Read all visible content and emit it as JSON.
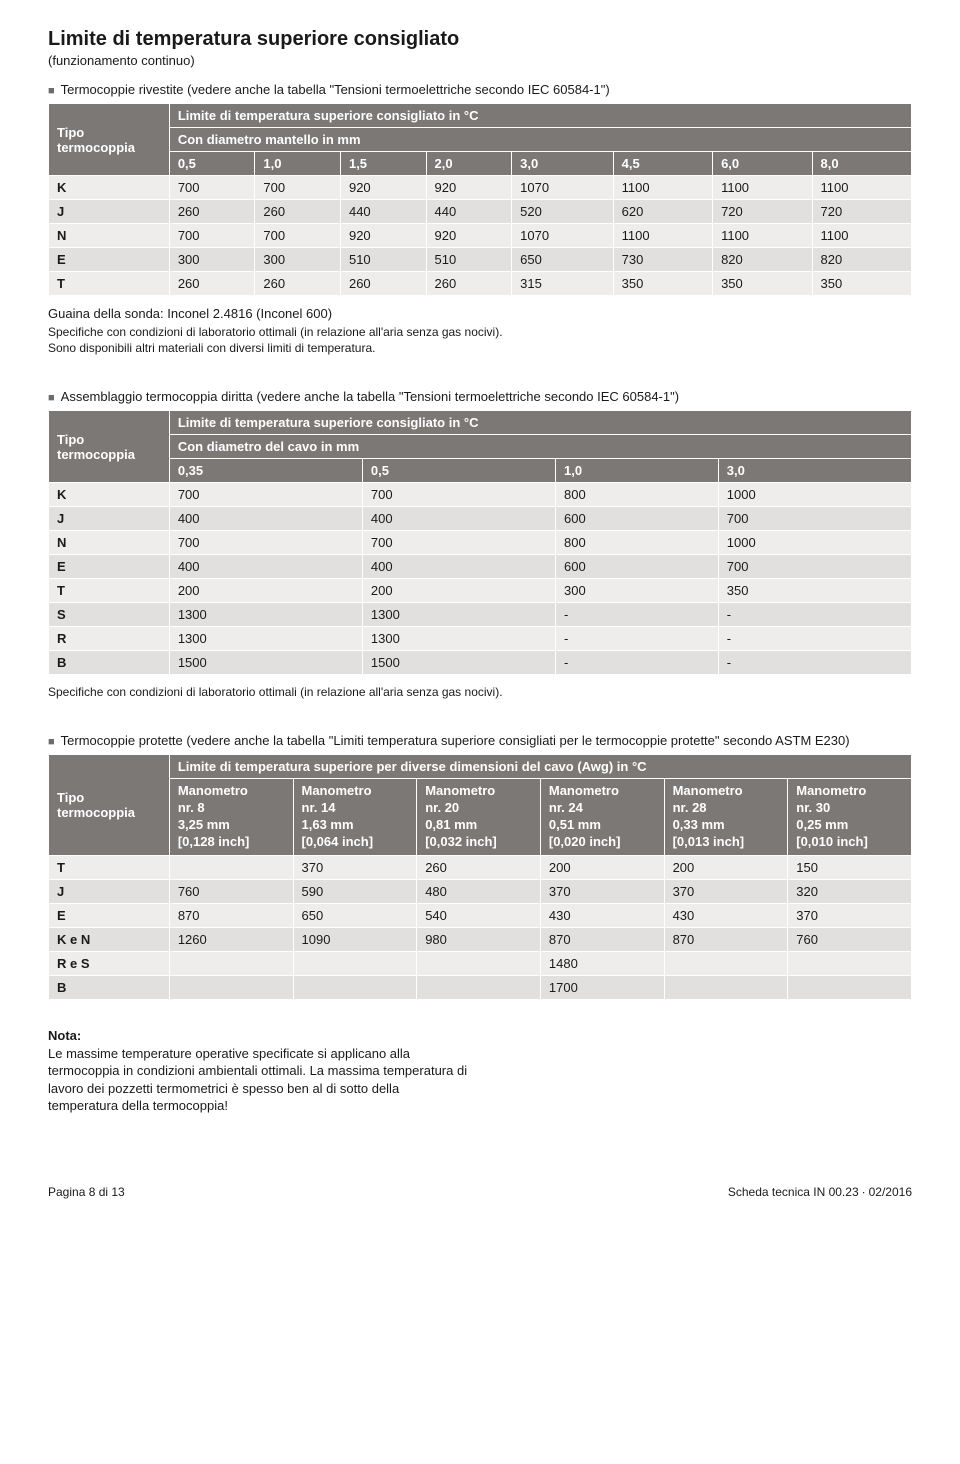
{
  "title": "Limite di temperatura superiore consigliato",
  "subtitle": "(funzionamento continuo)",
  "section1": {
    "bullet": "Termocoppie rivestite (vedere anche la tabella \"Tensioni termoelettriche secondo IEC 60584-1\")",
    "type_header": "Tipo termocoppia",
    "limit_header": "Limite di temperatura superiore consigliato in °C",
    "dia_header": "Con diametro mantello in mm",
    "cols": [
      "0,5",
      "1,0",
      "1,5",
      "2,0",
      "3,0",
      "4,5",
      "6,0",
      "8,0"
    ],
    "rows": [
      {
        "t": "K",
        "v": [
          "700",
          "700",
          "920",
          "920",
          "1070",
          "1100",
          "1100",
          "1100"
        ]
      },
      {
        "t": "J",
        "v": [
          "260",
          "260",
          "440",
          "440",
          "520",
          "620",
          "720",
          "720"
        ]
      },
      {
        "t": "N",
        "v": [
          "700",
          "700",
          "920",
          "920",
          "1070",
          "1100",
          "1100",
          "1100"
        ]
      },
      {
        "t": "E",
        "v": [
          "300",
          "300",
          "510",
          "510",
          "650",
          "730",
          "820",
          "820"
        ]
      },
      {
        "t": "T",
        "v": [
          "260",
          "260",
          "260",
          "260",
          "315",
          "350",
          "350",
          "350"
        ]
      }
    ],
    "after1": "Guaina della sonda: Inconel 2.4816 (Inconel 600)",
    "after2": "Specifiche con condizioni di laboratorio ottimali (in relazione all'aria senza gas nocivi).",
    "after3": "Sono disponibili altri materiali con diversi limiti di temperatura."
  },
  "section2": {
    "bullet": "Assemblaggio termocoppia diritta (vedere anche la tabella \"Tensioni termoelettriche secondo IEC 60584-1\")",
    "type_header": "Tipo termocoppia",
    "limit_header": "Limite di temperatura superiore consigliato in °C",
    "dia_header": "Con diametro del cavo in mm",
    "cols": [
      "0,35",
      "0,5",
      "1,0",
      "3,0"
    ],
    "rows": [
      {
        "t": "K",
        "v": [
          "700",
          "700",
          "800",
          "1000"
        ]
      },
      {
        "t": "J",
        "v": [
          "400",
          "400",
          "600",
          "700"
        ]
      },
      {
        "t": "N",
        "v": [
          "700",
          "700",
          "800",
          "1000"
        ]
      },
      {
        "t": "E",
        "v": [
          "400",
          "400",
          "600",
          "700"
        ]
      },
      {
        "t": "T",
        "v": [
          "200",
          "200",
          "300",
          "350"
        ]
      },
      {
        "t": "S",
        "v": [
          "1300",
          "1300",
          "-",
          "-"
        ]
      },
      {
        "t": "R",
        "v": [
          "1300",
          "1300",
          "-",
          "-"
        ]
      },
      {
        "t": "B",
        "v": [
          "1500",
          "1500",
          "-",
          "-"
        ]
      }
    ],
    "after1": "Specifiche con condizioni di laboratorio ottimali (in relazione all'aria senza gas nocivi)."
  },
  "section3": {
    "bullet": "Termocoppie protette (vedere anche la tabella \"Limiti temperatura superiore consigliati per le termocoppie protette\" secondo ASTM E230)",
    "type_header": "Tipo termocoppia",
    "limit_header": "Limite di temperatura superiore per diverse dimensioni del cavo (Awg) in °C",
    "col_headers": [
      [
        "Manometro",
        "nr. 8",
        "3,25 mm",
        "[0,128 inch]"
      ],
      [
        "Manometro",
        "nr. 14",
        "1,63 mm",
        "[0,064 inch]"
      ],
      [
        "Manometro",
        "nr. 20",
        "0,81 mm",
        "[0,032 inch]"
      ],
      [
        "Manometro",
        "nr. 24",
        "0,51 mm",
        "[0,020 inch]"
      ],
      [
        "Manometro",
        "nr. 28",
        "0,33 mm",
        "[0,013 inch]"
      ],
      [
        "Manometro",
        "nr. 30",
        "0,25 mm",
        "[0,010 inch]"
      ]
    ],
    "rows": [
      {
        "t": "T",
        "v": [
          "",
          "370",
          "260",
          "200",
          "200",
          "150"
        ]
      },
      {
        "t": "J",
        "v": [
          "760",
          "590",
          "480",
          "370",
          "370",
          "320"
        ]
      },
      {
        "t": "E",
        "v": [
          "870",
          "650",
          "540",
          "430",
          "430",
          "370"
        ]
      },
      {
        "t": "K e N",
        "v": [
          "1260",
          "1090",
          "980",
          "870",
          "870",
          "760"
        ]
      },
      {
        "t": "R e S",
        "v": [
          "",
          "",
          "",
          "1480",
          "",
          ""
        ]
      },
      {
        "t": "B",
        "v": [
          "",
          "",
          "",
          "1700",
          "",
          ""
        ]
      }
    ]
  },
  "nota": {
    "title": "Nota:",
    "body": "Le massime temperature operative specificate si applicano alla termocoppia in condizioni ambientali ottimali. La massima temperatura di lavoro dei pozzetti termometrici è spesso ben al di sotto della temperatura della termocoppia!"
  },
  "footer": {
    "left": "Pagina 8 di 13",
    "right": "Scheda tecnica IN 00.23 ∙ 02/2016"
  }
}
